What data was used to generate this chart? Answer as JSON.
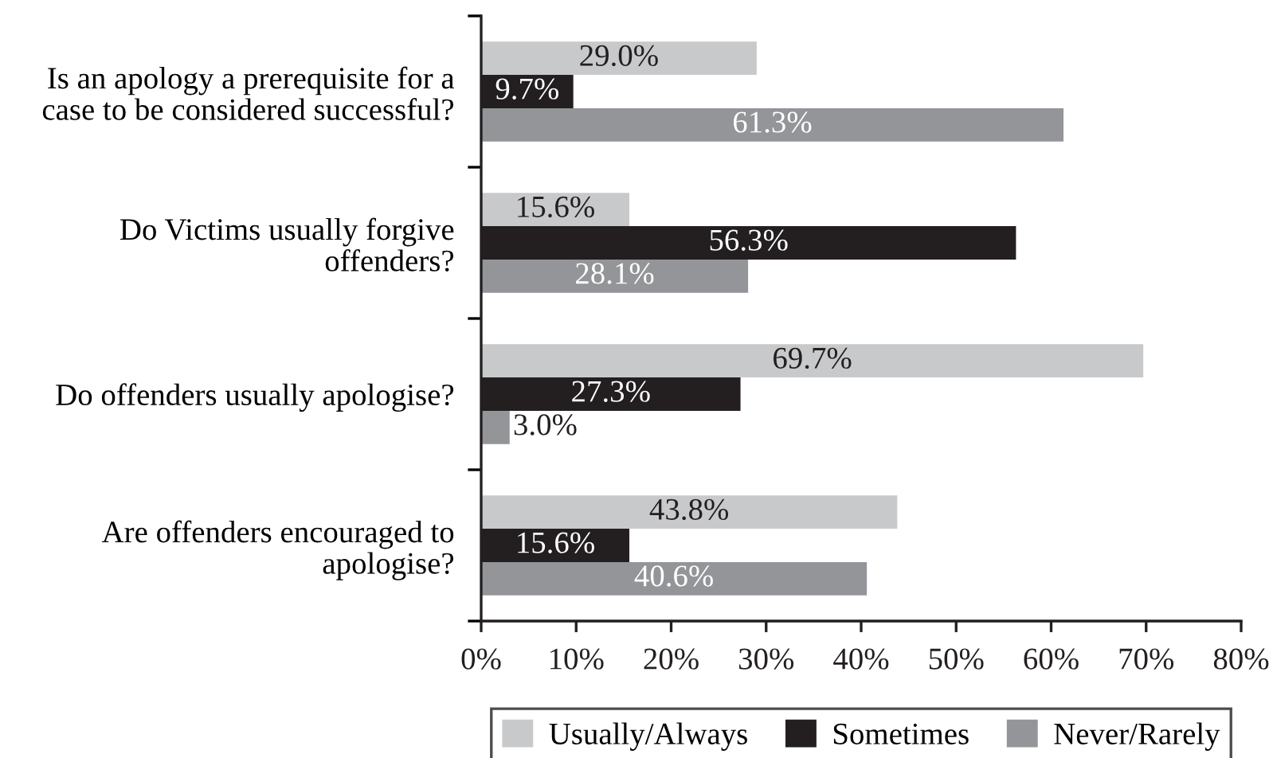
{
  "chart_data": {
    "type": "bar",
    "orientation": "horizontal",
    "categories": [
      "Is an apology a prerequisite for a\ncase to be considered successful?",
      "Do Victims usually forgive\noffenders?",
      "Do offenders usually apologise?",
      "Are offenders encouraged to\napologise?"
    ],
    "series": [
      {
        "name": "Usually/Always",
        "color": "#c8c9cb",
        "values": [
          29.0,
          15.6,
          69.7,
          43.8
        ],
        "value_labels": [
          "29.0%",
          "15.6%",
          "69.7%",
          "43.8%"
        ]
      },
      {
        "name": "Sometimes",
        "color": "#231f20",
        "values": [
          9.7,
          56.3,
          27.3,
          15.6
        ],
        "value_labels": [
          "9.7%",
          "56.3%",
          "27.3%",
          "15.6%"
        ]
      },
      {
        "name": "Never/Rarely",
        "color": "#939598",
        "values": [
          61.3,
          28.1,
          3.0,
          40.6
        ],
        "value_labels": [
          "61.3%",
          "28.1%",
          "3.0%",
          "40.6%"
        ]
      }
    ],
    "xlim": [
      0,
      80
    ],
    "xticks": [
      {
        "value": 0,
        "label": "0%"
      },
      {
        "value": 10,
        "label": "10%"
      },
      {
        "value": 20,
        "label": "20%"
      },
      {
        "value": 30,
        "label": "30%"
      },
      {
        "value": 40,
        "label": "40%"
      },
      {
        "value": 50,
        "label": "50%"
      },
      {
        "value": 60,
        "label": "60%"
      },
      {
        "value": 70,
        "label": "70%"
      },
      {
        "value": 80,
        "label": "80%"
      }
    ],
    "legend": "bottom"
  }
}
